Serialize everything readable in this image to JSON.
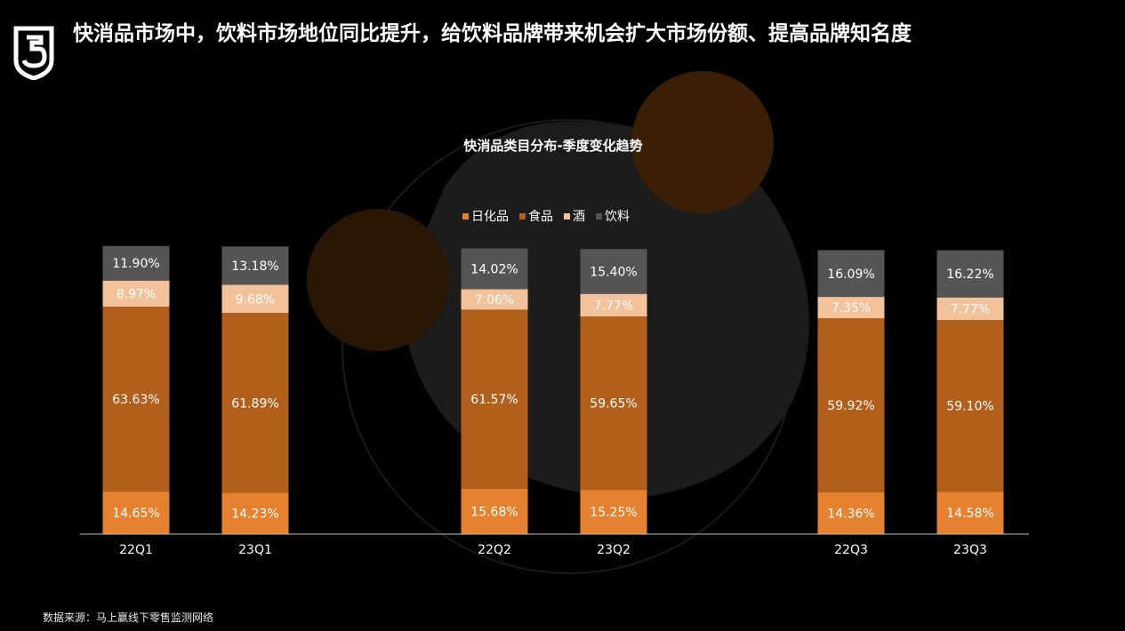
{
  "page": {
    "title": "快消品市场中，饮料市场地位同比提升，给饮料品牌带来机会扩大市场份额、提高品牌知名度",
    "source": "数据来源：马上赢线下零售监测网络"
  },
  "colors": {
    "background": "#000000",
    "daily_chemical": "#E6822F",
    "food": "#B35F1C",
    "liquor": "#F2C29A",
    "beverage": "#555555",
    "label_text": "#ffffff",
    "axis": "#bfbfbf"
  },
  "chart_data": {
    "type": "bar",
    "stacked": true,
    "title": "快消品类目分布-季度变化趋势",
    "legend_position": "top-center",
    "categories": [
      "22Q1",
      "23Q1",
      "22Q2",
      "23Q2",
      "22Q3",
      "23Q3"
    ],
    "series": [
      {
        "name": "日化品",
        "color": "#E6822F",
        "values": [
          14.65,
          14.23,
          15.68,
          15.25,
          14.36,
          14.58
        ],
        "labels": [
          "14.65%",
          "14.23%",
          "15.68%",
          "15.25%",
          "14.36%",
          "14.58%"
        ]
      },
      {
        "name": "食品",
        "color": "#B35F1C",
        "values": [
          63.63,
          61.89,
          61.57,
          59.65,
          59.92,
          59.1
        ],
        "labels": [
          "63.63%",
          "61.89%",
          "61.57%",
          "59.65%",
          "59.92%",
          "59.10%"
        ]
      },
      {
        "name": "酒",
        "color": "#F2C29A",
        "values": [
          8.97,
          9.68,
          7.06,
          7.77,
          7.35,
          7.77
        ],
        "labels": [
          "8.97%",
          "9.68%",
          "7.06%",
          "7.77%",
          "7.35%",
          "7.77%"
        ]
      },
      {
        "name": "饮料",
        "color": "#555555",
        "values": [
          11.9,
          13.18,
          14.02,
          15.4,
          16.09,
          16.22
        ],
        "labels": [
          "11.90%",
          "13.18%",
          "14.02%",
          "15.40%",
          "16.09%",
          "16.22%"
        ]
      }
    ],
    "ylim": [
      0,
      100
    ],
    "grid": false
  }
}
